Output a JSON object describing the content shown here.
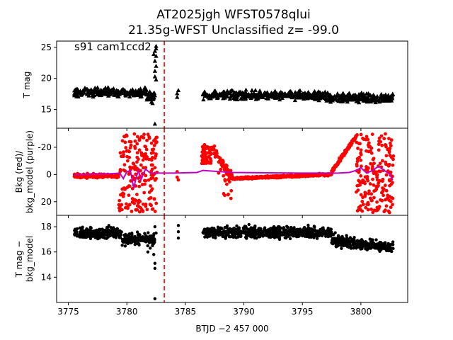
{
  "chart_data": {
    "title": [
      "AT2025jgh  WFST0578qlui",
      "21.35g-WFST Unclassified z= -99.0"
    ],
    "xlabel": "BTJD −2 457 000",
    "xlim": [
      3774.0,
      3804.0
    ],
    "xticks": [
      3775,
      3780,
      3785,
      3790,
      3795,
      3800
    ],
    "vline": {
      "x": 3783.2,
      "color": "#ff0000",
      "style": "dashed"
    },
    "panels": [
      {
        "type": "scatter",
        "ylabel": [
          "T mag"
        ],
        "ylim": [
          26.0,
          12.0
        ],
        "yticks": [
          15,
          20,
          25
        ],
        "annotation": "s91 cam1ccd2",
        "series": [
          {
            "color": "#000000",
            "marker": "triangle-up",
            "kind": "tmag"
          }
        ],
        "segments": [
          {
            "x": [
              3775.5,
              3781.7
            ],
            "center": 17.8,
            "scatter": 0.8
          },
          {
            "x": [
              3781.7,
              3782.4
            ],
            "center": 17.2,
            "scatter": 1.0
          },
          {
            "x": [
              3786.5,
              3797.0
            ],
            "center": 17.3,
            "scatter": 0.8
          },
          {
            "x": [
              3797.0,
              3802.8
            ],
            "center": 16.9,
            "scatter": 0.8
          }
        ],
        "extra_points": [
          {
            "x": 3782.4,
            "y": 12.7
          },
          {
            "x": 3782.4,
            "y": 21.2
          },
          {
            "x": 3782.5,
            "y": 22.0
          },
          {
            "x": 3782.4,
            "y": 22.8
          },
          {
            "x": 3782.5,
            "y": 23.6
          },
          {
            "x": 3782.4,
            "y": 24.4
          },
          {
            "x": 3782.5,
            "y": 25.2
          },
          {
            "x": 3782.3,
            "y": 23.9
          },
          {
            "x": 3782.5,
            "y": 24.8
          },
          {
            "x": 3784.3,
            "y": 17.0
          },
          {
            "x": 3784.3,
            "y": 17.6
          },
          {
            "x": 3784.4,
            "y": 18.1
          },
          {
            "x": 3782.1,
            "y": 16.2
          },
          {
            "x": 3782.2,
            "y": 16.0
          },
          {
            "x": 3781.9,
            "y": 16.6
          },
          {
            "x": 3782.4,
            "y": 20.3
          },
          {
            "x": 3782.5,
            "y": 19.8
          }
        ]
      },
      {
        "type": "scatter",
        "ylabel": [
          "Bkg (red)/",
          "bkg_model (purple)"
        ],
        "ylim": [
          -34.0,
          30.0
        ],
        "yticks": [
          -20,
          0,
          20
        ],
        "series": [
          {
            "color": "#ff0000",
            "marker": "circle",
            "kind": "bkg"
          },
          {
            "color": "#bf00bf",
            "marker": "line",
            "kind": "bkg_model"
          }
        ],
        "bkg_model_line": {
          "x": [
            3775.5,
            3778.5,
            3779.4,
            3779.7,
            3780.0,
            3780.3,
            3780.5,
            3780.6,
            3780.8,
            3781.0,
            3781.2,
            3781.6,
            3782.0,
            3782.4,
            3784.0,
            3786.0,
            3786.5,
            3789.0,
            3795.0,
            3798.0,
            3799.0,
            3799.6,
            3800.0,
            3800.5,
            3801.0,
            3801.5,
            3802.0,
            3802.5,
            3802.7
          ],
          "y": [
            0.0,
            -0.5,
            -1.0,
            3.0,
            -2.0,
            -3.0,
            6.0,
            10.0,
            2.0,
            -3.0,
            4.0,
            -4.0,
            -1.0,
            -1.0,
            -1.0,
            -1.5,
            -3.0,
            -1.5,
            -1.0,
            -1.0,
            -1.5,
            -3.0,
            -5.0,
            -1.0,
            -3.0,
            -6.0,
            -3.0,
            0.0,
            4.0
          ]
        }
      },
      {
        "type": "scatter",
        "ylabel": [
          "T mag −",
          "bkg_model"
        ],
        "ylim": [
          18.9,
          12.0
        ],
        "yticks": [
          14,
          16,
          18
        ],
        "series": [
          {
            "color": "#000000",
            "marker": "circle",
            "kind": "tmag_minus_bkg"
          }
        ],
        "segments": [
          {
            "x": [
              3775.5,
              3779.6
            ],
            "center": 17.5,
            "scatter": 0.45
          },
          {
            "x": [
              3779.6,
              3782.4
            ],
            "center": 17.0,
            "scatter": 0.5
          },
          {
            "x": [
              3786.5,
              3797.5
            ],
            "center": 17.55,
            "scatter": 0.45
          },
          {
            "x": [
              3797.5,
              3802.8
            ],
            "center": 16.95,
            "scatter": 0.45
          }
        ],
        "extra_points": [
          {
            "x": 3782.4,
            "y": 12.3
          },
          {
            "x": 3782.4,
            "y": 14.7
          },
          {
            "x": 3782.4,
            "y": 15.1
          },
          {
            "x": 3782.3,
            "y": 15.8
          },
          {
            "x": 3782.5,
            "y": 17.5
          },
          {
            "x": 3782.4,
            "y": 18.0
          },
          {
            "x": 3784.4,
            "y": 17.1
          },
          {
            "x": 3784.4,
            "y": 17.6
          },
          {
            "x": 3784.4,
            "y": 18.1
          },
          {
            "x": 3781.8,
            "y": 16.0
          },
          {
            "x": 3782.0,
            "y": 16.3
          }
        ]
      }
    ]
  }
}
